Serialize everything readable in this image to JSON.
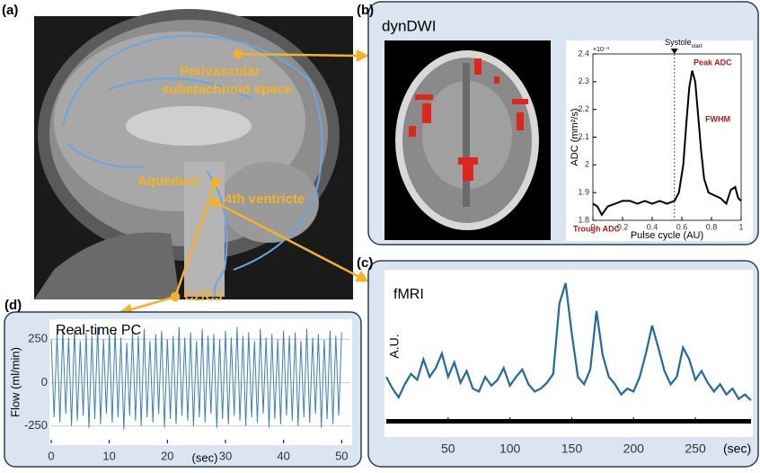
{
  "panels": {
    "a": "(a)",
    "b": "(b)",
    "c": "(c)",
    "d": "(d)"
  },
  "mri_labels": {
    "perivascular_1": "Perivascular",
    "perivascular_2": "subarachnoid space",
    "aqueduct": "Aqueduct",
    "ventricle": "4th ventricte",
    "c2c3": "C2/C3"
  },
  "b_title": "dynDWI",
  "chart_data": [
    {
      "type": "line",
      "x_label": "Pulse cycle (AU)",
      "y_label": "ADC (mm²/s)",
      "y_exponent": "×10⁻³",
      "annotations": {
        "systole": "Systole",
        "systole_sub": "start",
        "peak": "Peak ADC",
        "fwhm": "FWHM",
        "trough": "Trough ADC"
      },
      "systole_x": 0.55,
      "x": [
        0,
        0.03,
        0.06,
        0.1,
        0.15,
        0.2,
        0.25,
        0.3,
        0.35,
        0.4,
        0.45,
        0.5,
        0.55,
        0.58,
        0.61,
        0.63,
        0.65,
        0.67,
        0.69,
        0.71,
        0.73,
        0.75,
        0.78,
        0.82,
        0.86,
        0.9,
        0.93,
        0.96,
        0.98,
        1
      ],
      "values": [
        1.86,
        1.85,
        1.82,
        1.85,
        1.86,
        1.87,
        1.87,
        1.86,
        1.87,
        1.86,
        1.87,
        1.86,
        1.87,
        1.9,
        2.0,
        2.15,
        2.28,
        2.34,
        2.3,
        2.18,
        2.05,
        1.95,
        1.9,
        1.89,
        1.88,
        1.86,
        1.91,
        1.92,
        1.88,
        1.87
      ],
      "color": "#000000",
      "xlim": [
        0,
        1
      ],
      "ylim": [
        1.8,
        2.4
      ],
      "xticks": [
        0,
        0.2,
        0.4,
        0.6,
        0.8,
        1
      ],
      "yticks": [
        1.8,
        1.9,
        2,
        2.1,
        2.2,
        2.3,
        2.4
      ],
      "grid": false
    },
    {
      "type": "line",
      "title": "fMRI",
      "y_label": "A.U.",
      "x_unit": "(sec)",
      "x": [
        0,
        5,
        10,
        15,
        20,
        25,
        30,
        35,
        40,
        45,
        50,
        55,
        60,
        65,
        70,
        75,
        80,
        85,
        90,
        95,
        100,
        105,
        110,
        115,
        120,
        125,
        130,
        135,
        140,
        145,
        150,
        155,
        160,
        165,
        170,
        175,
        180,
        185,
        190,
        195,
        200,
        205,
        210,
        215,
        220,
        225,
        230,
        235,
        240,
        245,
        250,
        255,
        260,
        265,
        270,
        275,
        280,
        285,
        290,
        295
      ],
      "values": [
        3.0,
        2.2,
        1.6,
        2.5,
        3.2,
        2.8,
        4.2,
        3.0,
        3.6,
        4.6,
        3.0,
        4.0,
        2.6,
        3.4,
        2.2,
        2.0,
        3.0,
        2.4,
        2.8,
        3.6,
        2.4,
        3.0,
        3.5,
        2.5,
        2.0,
        2.2,
        2.6,
        3.2,
        8.0,
        9.4,
        6.0,
        3.0,
        2.5,
        3.5,
        7.5,
        4.5,
        3.0,
        2.5,
        1.8,
        2.2,
        2.0,
        3.0,
        4.6,
        6.5,
        5.0,
        3.4,
        2.5,
        3.0,
        5.0,
        4.2,
        2.8,
        3.4,
        2.6,
        2.0,
        2.5,
        1.8,
        2.2,
        1.5,
        1.8,
        1.4
      ],
      "color": "#1f6aa5",
      "xlim": [
        0,
        295
      ],
      "ylim": [
        0,
        10
      ],
      "xticks": [
        50,
        100,
        150,
        200,
        250
      ],
      "grid": false
    },
    {
      "type": "line",
      "title": "Real-time PC",
      "y_label": "Flow (ml/min)",
      "x_unit": "(sec)",
      "x": [
        0,
        0.5,
        1,
        1.5,
        2,
        2.5,
        3,
        3.5,
        4,
        4.5,
        5,
        5.5,
        6,
        6.5,
        7,
        7.5,
        8,
        8.5,
        9,
        9.5,
        10,
        10.5,
        11,
        11.5,
        12,
        12.5,
        13,
        13.5,
        14,
        14.5,
        15,
        15.5,
        16,
        16.5,
        17,
        17.5,
        18,
        18.5,
        19,
        19.5,
        20,
        20.5,
        21,
        21.5,
        22,
        22.5,
        23,
        23.5,
        24,
        24.5,
        25,
        25.5,
        26,
        26.5,
        27,
        27.5,
        28,
        28.5,
        29,
        29.5,
        30,
        30.5,
        31,
        31.5,
        32,
        32.5,
        33,
        33.5,
        34,
        34.5,
        35,
        35.5,
        36,
        36.5,
        37,
        37.5,
        38,
        38.5,
        39,
        39.5,
        40,
        40.5,
        41,
        41.5,
        42,
        42.5,
        43,
        43.5,
        44,
        44.5,
        45,
        45.5,
        46,
        46.5,
        47,
        47.5,
        48,
        48.5,
        49,
        49.5,
        50
      ],
      "values": [
        250,
        -200,
        280,
        -230,
        300,
        -180,
        260,
        -250,
        310,
        -220,
        240,
        -190,
        290,
        -260,
        270,
        -210,
        320,
        -240,
        250,
        -180,
        280,
        -230,
        300,
        -200,
        260,
        -270,
        230,
        -190,
        290,
        -220,
        270,
        -250,
        310,
        -200,
        240,
        -230,
        280,
        -180,
        300,
        -260,
        250,
        -210,
        270,
        -240,
        320,
        -190,
        260,
        -220,
        290,
        -250,
        240,
        -200,
        310,
        -230,
        270,
        -180,
        280,
        -260,
        250,
        -210,
        300,
        -240,
        260,
        -190,
        320,
        -220,
        270,
        -250,
        290,
        -200,
        240,
        -230,
        310,
        -180,
        260,
        -260,
        280,
        -210,
        250,
        -240,
        300,
        -190,
        270,
        -220,
        290,
        -250,
        240,
        -200,
        310,
        -230,
        260,
        -180,
        280,
        -260,
        250,
        -210,
        300,
        -240,
        270,
        -190,
        290
      ],
      "color": "#3a7fc0",
      "xlim": [
        0,
        51.5
      ],
      "ylim": [
        -350,
        350
      ],
      "xticks": [
        0,
        10,
        20,
        30,
        40,
        50
      ],
      "yticks": [
        -250,
        0,
        250
      ],
      "grid": true
    }
  ]
}
